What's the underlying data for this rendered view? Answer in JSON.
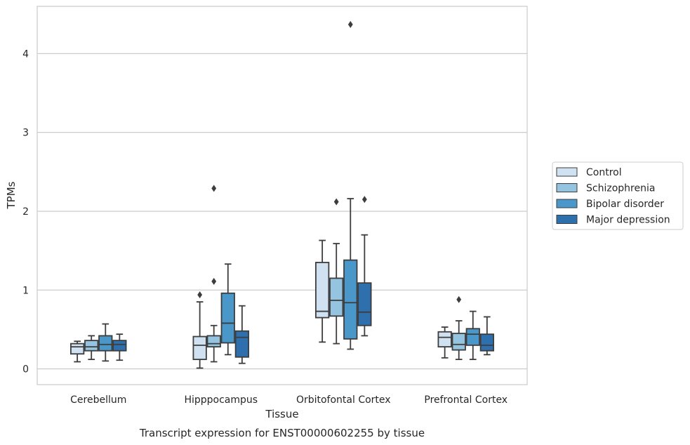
{
  "chart_data": {
    "type": "box",
    "caption": "Transcript expression for ENST00000602255 by tissue",
    "xlabel": "Tissue",
    "ylabel": "TPMs",
    "ylim": [
      -0.2,
      4.6
    ],
    "yticks": [
      0,
      1,
      2,
      3,
      4
    ],
    "grid": "horizontal",
    "legend_position": "right",
    "categories": [
      "Cerebellum",
      "Hipppocampus",
      "Orbitofontal Cortex",
      "Prefrontal Cortex"
    ],
    "series": [
      {
        "name": "Control",
        "color": "#d0e1f2",
        "boxes": [
          {
            "whislo": 0.09,
            "q1": 0.19,
            "med": 0.28,
            "q3": 0.32,
            "whishi": 0.35,
            "fliers": []
          },
          {
            "whislo": 0.01,
            "q1": 0.12,
            "med": 0.3,
            "q3": 0.41,
            "whishi": 0.85,
            "fliers": [
              0.94
            ]
          },
          {
            "whislo": 0.34,
            "q1": 0.65,
            "med": 0.73,
            "q3": 1.35,
            "whishi": 1.63,
            "fliers": []
          },
          {
            "whislo": 0.14,
            "q1": 0.28,
            "med": 0.4,
            "q3": 0.47,
            "whishi": 0.53,
            "fliers": []
          }
        ]
      },
      {
        "name": "Schizophrenia",
        "color": "#94c4df",
        "boxes": [
          {
            "whislo": 0.12,
            "q1": 0.23,
            "med": 0.28,
            "q3": 0.36,
            "whishi": 0.42,
            "fliers": []
          },
          {
            "whislo": 0.09,
            "q1": 0.28,
            "med": 0.32,
            "q3": 0.42,
            "whishi": 0.55,
            "fliers": [
              1.11,
              2.29
            ]
          },
          {
            "whislo": 0.32,
            "q1": 0.67,
            "med": 0.87,
            "q3": 1.15,
            "whishi": 1.59,
            "fliers": [
              2.12
            ]
          },
          {
            "whislo": 0.12,
            "q1": 0.24,
            "med": 0.31,
            "q3": 0.45,
            "whishi": 0.61,
            "fliers": [
              0.88
            ]
          }
        ]
      },
      {
        "name": "Bipolar disorder",
        "color": "#4a98c9",
        "boxes": [
          {
            "whislo": 0.1,
            "q1": 0.23,
            "med": 0.31,
            "q3": 0.42,
            "whishi": 0.57,
            "fliers": []
          },
          {
            "whislo": 0.18,
            "q1": 0.33,
            "med": 0.58,
            "q3": 0.96,
            "whishi": 1.33,
            "fliers": []
          },
          {
            "whislo": 0.25,
            "q1": 0.38,
            "med": 0.84,
            "q3": 1.38,
            "whishi": 2.16,
            "fliers": [
              4.37
            ]
          },
          {
            "whislo": 0.12,
            "q1": 0.3,
            "med": 0.44,
            "q3": 0.51,
            "whishi": 0.73,
            "fliers": []
          }
        ]
      },
      {
        "name": "Major depression",
        "color": "#2e6fad",
        "boxes": [
          {
            "whislo": 0.11,
            "q1": 0.23,
            "med": 0.31,
            "q3": 0.36,
            "whishi": 0.44,
            "fliers": []
          },
          {
            "whislo": 0.07,
            "q1": 0.15,
            "med": 0.4,
            "q3": 0.48,
            "whishi": 0.8,
            "fliers": []
          },
          {
            "whislo": 0.42,
            "q1": 0.55,
            "med": 0.72,
            "q3": 1.09,
            "whishi": 1.7,
            "fliers": [
              2.15
            ]
          },
          {
            "whislo": 0.18,
            "q1": 0.23,
            "med": 0.3,
            "q3": 0.44,
            "whishi": 0.66,
            "fliers": []
          }
        ]
      }
    ]
  }
}
